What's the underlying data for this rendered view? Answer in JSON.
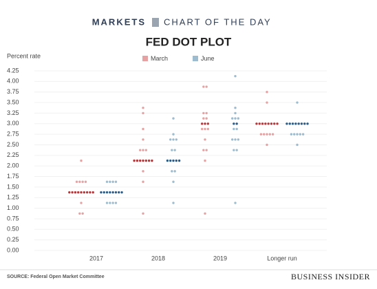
{
  "header": {
    "section": "MARKETS",
    "tagline": "CHART OF THE DAY"
  },
  "chart_data": {
    "type": "dotplot",
    "title": "FED DOT PLOT",
    "y_label": "Percent rate",
    "categories": [
      "2017",
      "2018",
      "2019",
      "Longer run"
    ],
    "ylim": [
      0,
      4.25
    ],
    "yticks": [
      {
        "value": 0,
        "label": "0.00"
      },
      {
        "value": 0.25,
        "label": "0.25"
      },
      {
        "value": 0.5,
        "label": "0.50"
      },
      {
        "value": 0.75,
        "label": "0.75"
      },
      {
        "value": 1,
        "label": "1.00"
      },
      {
        "value": 1.25,
        "label": "1.25"
      },
      {
        "value": 1.5,
        "label": "1.50"
      },
      {
        "value": 1.75,
        "label": "1.75"
      },
      {
        "value": 2,
        "label": "2.00"
      },
      {
        "value": 2.25,
        "label": "2.25"
      },
      {
        "value": 2.5,
        "label": "2.50"
      },
      {
        "value": 2.75,
        "label": "2.75"
      },
      {
        "value": 3,
        "label": "3.00"
      },
      {
        "value": 3.25,
        "label": "3.25"
      },
      {
        "value": 3.5,
        "label": "3.50"
      },
      {
        "value": 3.75,
        "label": "3.75"
      },
      {
        "value": 4,
        "label": "4.00"
      },
      {
        "value": 4.25,
        "label": "4.25"
      }
    ],
    "grid": true,
    "series": [
      {
        "name": "March",
        "color": "#e6a2a2",
        "median_color": "#b2393b",
        "medians": [
          1.375,
          2.125,
          3,
          3
        ],
        "dots": [
          [
            {
              "rate": 2.125,
              "count": 1
            },
            {
              "rate": 1.625,
              "count": 4
            },
            {
              "rate": 1.375,
              "count": 9
            },
            {
              "rate": 1.125,
              "count": 1
            },
            {
              "rate": 0.875,
              "count": 2
            }
          ],
          [
            {
              "rate": 3.375,
              "count": 1
            },
            {
              "rate": 3.25,
              "count": 1
            },
            {
              "rate": 2.875,
              "count": 1
            },
            {
              "rate": 2.625,
              "count": 1
            },
            {
              "rate": 2.375,
              "count": 3
            },
            {
              "rate": 2.125,
              "count": 7
            },
            {
              "rate": 1.875,
              "count": 1
            },
            {
              "rate": 1.625,
              "count": 1
            },
            {
              "rate": 0.875,
              "count": 1
            }
          ],
          [
            {
              "rate": 3.875,
              "count": 2
            },
            {
              "rate": 3.25,
              "count": 2
            },
            {
              "rate": 3.125,
              "count": 2
            },
            {
              "rate": 3,
              "count": 3
            },
            {
              "rate": 2.875,
              "count": 3
            },
            {
              "rate": 2.625,
              "count": 1
            },
            {
              "rate": 2.375,
              "count": 2
            },
            {
              "rate": 2.125,
              "count": 1
            },
            {
              "rate": 0.875,
              "count": 1
            }
          ],
          [
            {
              "rate": 3.75,
              "count": 1
            },
            {
              "rate": 3.5,
              "count": 1
            },
            {
              "rate": 3,
              "count": 8
            },
            {
              "rate": 2.75,
              "count": 5
            },
            {
              "rate": 2.5,
              "count": 1
            }
          ]
        ]
      },
      {
        "name": "June",
        "color": "#9dbccf",
        "median_color": "#2e5c84",
        "medians": [
          1.375,
          2.125,
          3,
          3
        ],
        "dots": [
          [
            {
              "rate": 1.625,
              "count": 4
            },
            {
              "rate": 1.375,
              "count": 8
            },
            {
              "rate": 1.125,
              "count": 4
            }
          ],
          [
            {
              "rate": 3.125,
              "count": 1
            },
            {
              "rate": 2.75,
              "count": 1
            },
            {
              "rate": 2.625,
              "count": 3
            },
            {
              "rate": 2.375,
              "count": 2
            },
            {
              "rate": 2.125,
              "count": 5
            },
            {
              "rate": 1.875,
              "count": 2
            },
            {
              "rate": 1.625,
              "count": 1
            },
            {
              "rate": 1.125,
              "count": 1
            }
          ],
          [
            {
              "rate": 4.125,
              "count": 1
            },
            {
              "rate": 3.375,
              "count": 1
            },
            {
              "rate": 3.25,
              "count": 1
            },
            {
              "rate": 3.125,
              "count": 3
            },
            {
              "rate": 3,
              "count": 2
            },
            {
              "rate": 2.875,
              "count": 2
            },
            {
              "rate": 2.625,
              "count": 3
            },
            {
              "rate": 2.375,
              "count": 2
            },
            {
              "rate": 1.125,
              "count": 1
            }
          ],
          [
            {
              "rate": 3.5,
              "count": 1
            },
            {
              "rate": 3,
              "count": 8
            },
            {
              "rate": 2.75,
              "count": 5
            },
            {
              "rate": 2.5,
              "count": 1
            }
          ]
        ]
      }
    ]
  },
  "source": "SOURCE: Federal Open Market Committee",
  "brand": "BUSINESS INSIDER"
}
